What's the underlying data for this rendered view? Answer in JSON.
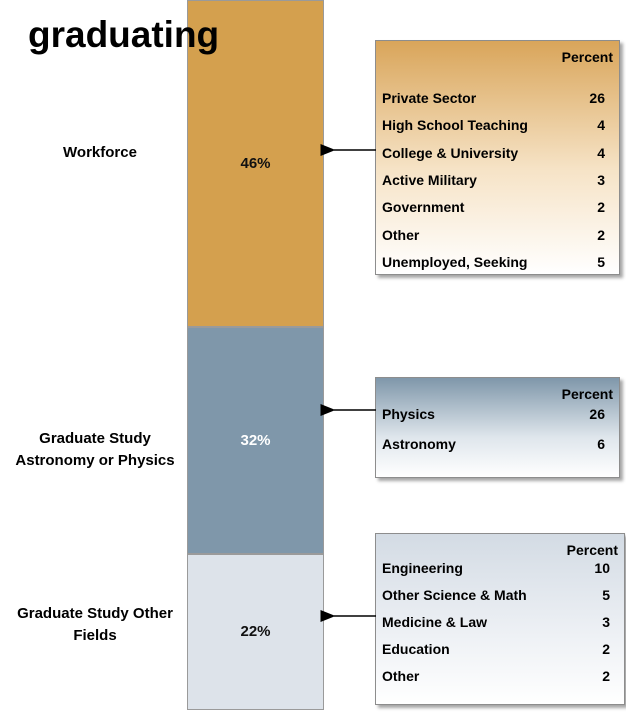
{
  "chart_data": {
    "type": "stacked_bar",
    "title": "graduating",
    "categories": [
      "Workforce",
      "Graduate Study Astronomy or Physics",
      "Graduate Study Other Fields"
    ],
    "values": [
      46,
      32,
      22
    ],
    "value_labels": [
      "46%",
      "32%",
      "22%"
    ],
    "colors": [
      "#d4a04e",
      "#7f97aa",
      "#dde3ea"
    ],
    "breakdowns": [
      {
        "header": "Percent",
        "rows": [
          {
            "label": "Private Sector",
            "value": 26
          },
          {
            "label": "High School Teaching",
            "value": 4
          },
          {
            "label": "College & University",
            "value": 4
          },
          {
            "label": "Active Military",
            "value": 3
          },
          {
            "label": "Government",
            "value": 2
          },
          {
            "label": "Other",
            "value": 2
          },
          {
            "label": "Unemployed, Seeking",
            "value": 5
          }
        ]
      },
      {
        "header": "Percent",
        "rows": [
          {
            "label": "Physics",
            "value": 26
          },
          {
            "label": "Astronomy",
            "value": 6
          }
        ]
      },
      {
        "header": "Percent",
        "rows": [
          {
            "label": "Engineering",
            "value": 10
          },
          {
            "label": "Other Science & Math",
            "value": 5
          },
          {
            "label": "Medicine & Law",
            "value": 3
          },
          {
            "label": "Education",
            "value": 2
          },
          {
            "label": "Other",
            "value": 2
          }
        ]
      }
    ]
  }
}
